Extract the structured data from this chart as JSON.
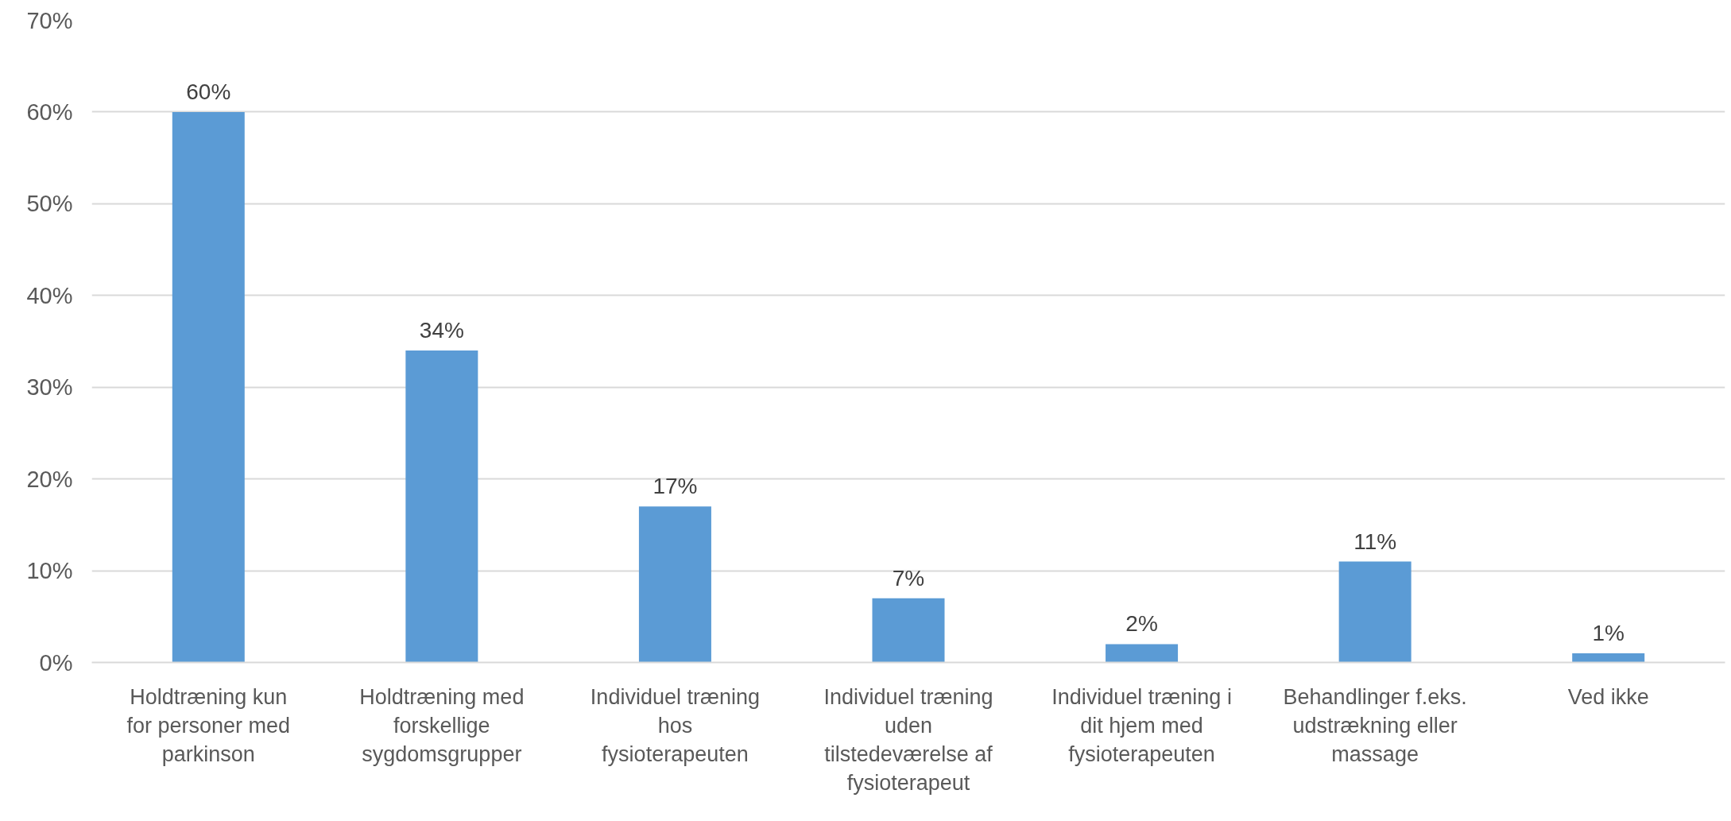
{
  "chart_data": {
    "type": "bar",
    "categories": [
      "Holdtræning kun\nfor personer med\nparkinson",
      "Holdtræning med\nforskellige\nsygdomsgrupper",
      "Individuel træning\nhos\nfysioterapeuten",
      "Individuel træning\nuden\ntilstedeværelse af\nfysioterapeut",
      "Individuel træning i\ndit hjem med\nfysioterapeuten",
      "Behandlinger f.eks.\nudstrækning eller\nmassage",
      "Ved ikke"
    ],
    "values": [
      60,
      34,
      17,
      7,
      2,
      11,
      1
    ],
    "value_labels": [
      "60%",
      "34%",
      "17%",
      "7%",
      "2%",
      "11%",
      "1%"
    ],
    "color": "#5b9bd5",
    "ylim": [
      0,
      70
    ],
    "yticks": [
      {
        "value": 0,
        "label": "0%"
      },
      {
        "value": 10,
        "label": "10%"
      },
      {
        "value": 20,
        "label": "20%"
      },
      {
        "value": 30,
        "label": "30%"
      },
      {
        "value": 40,
        "label": "40%"
      },
      {
        "value": 50,
        "label": "50%"
      },
      {
        "value": 60,
        "label": "60%"
      },
      {
        "value": 70,
        "label": "70%"
      }
    ],
    "grid": "y"
  }
}
